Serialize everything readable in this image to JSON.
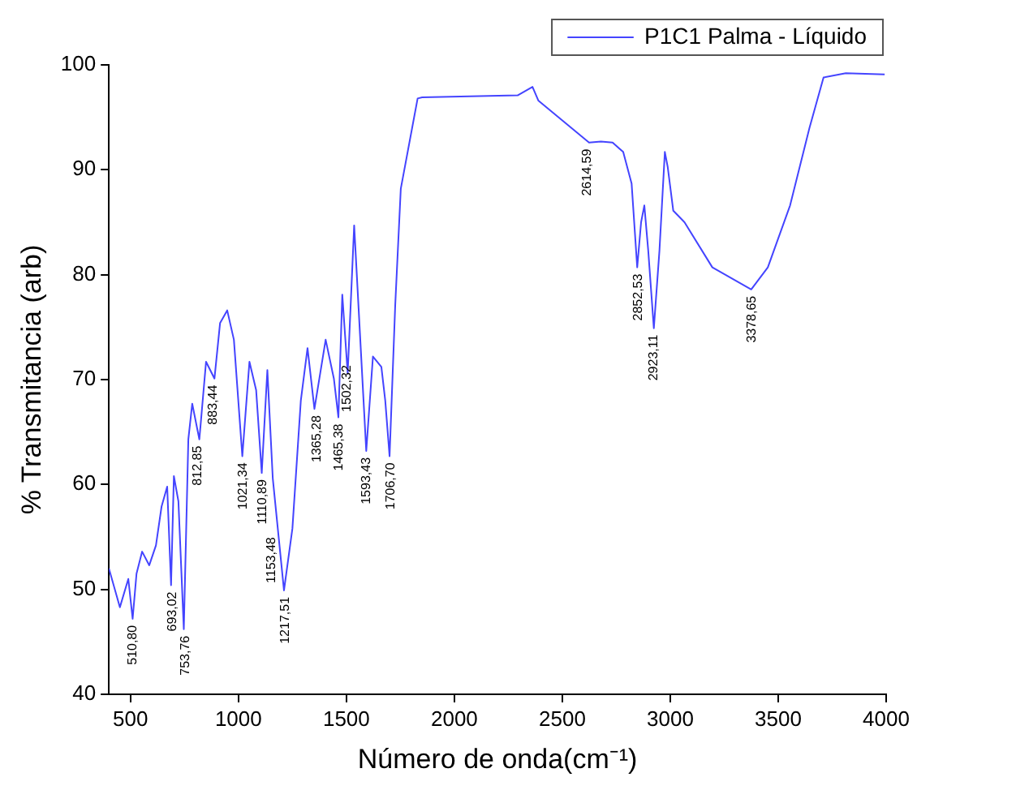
{
  "chart_data": {
    "type": "line",
    "xlabel": "Número de onda(cm⁻¹)",
    "ylabel": "% Transmitancia (arb)",
    "xlim": [
      400,
      4000
    ],
    "xticks": [
      500,
      1000,
      1500,
      2000,
      2500,
      3000,
      3500,
      4000
    ],
    "ylim": [
      40,
      100
    ],
    "yticks": [
      40,
      50,
      60,
      70,
      80,
      90,
      100
    ],
    "grid": false,
    "legend": "top right",
    "marker": "none",
    "line_style": "solid",
    "series": [
      {
        "name": "P1C1 Palma - Líquido",
        "color": "#4444ff",
        "x": [
          400,
          451,
          490,
          510,
          528,
          554,
          587,
          618,
          644,
          670,
          688,
          701,
          722,
          747,
          768,
          786,
          819,
          850,
          889,
          915,
          948,
          979,
          1018,
          1051,
          1082,
          1108,
          1134,
          1159,
          1211,
          1250,
          1289,
          1320,
          1352,
          1404,
          1442,
          1463,
          1481,
          1506,
          1536,
          1592,
          1623,
          1662,
          1680,
          1700,
          1726,
          1752,
          1830,
          1851,
          2293,
          2362,
          2389,
          2624,
          2679,
          2733,
          2782,
          2821,
          2847,
          2865,
          2880,
          2898,
          2924,
          2950,
          2975,
          2988,
          3014,
          3066,
          3195,
          3375,
          3452,
          3555,
          3645,
          3710,
          3813,
          3993
        ],
        "values": [
          52.0,
          48.3,
          51.0,
          47.2,
          51.5,
          53.6,
          52.3,
          54.2,
          57.9,
          59.8,
          50.4,
          60.8,
          58.4,
          46.2,
          64.3,
          67.7,
          64.3,
          71.7,
          70.1,
          75.4,
          76.6,
          73.8,
          62.7,
          71.7,
          69.0,
          61.1,
          70.9,
          60.6,
          49.9,
          55.8,
          68.0,
          73.0,
          67.2,
          73.8,
          70.1,
          66.4,
          78.1,
          70.6,
          84.7,
          63.2,
          72.2,
          71.2,
          68.0,
          62.7,
          77.0,
          88.2,
          96.8,
          96.9,
          97.1,
          97.9,
          96.6,
          92.6,
          92.7,
          92.6,
          91.7,
          88.7,
          80.7,
          85.0,
          86.6,
          82.3,
          74.9,
          82.3,
          91.7,
          90.3,
          86.1,
          85.0,
          80.7,
          78.6,
          80.7,
          86.6,
          94.0,
          98.8,
          99.2,
          99.1
        ]
      }
    ],
    "annotations": [
      {
        "text": "510,80",
        "x": 510.8,
        "y": 47.2
      },
      {
        "text": "693,02",
        "x": 693.02,
        "y": 50.4
      },
      {
        "text": "753,76",
        "x": 753.76,
        "y": 46.2
      },
      {
        "text": "812,85",
        "x": 812.85,
        "y": 64.3
      },
      {
        "text": "883,44",
        "x": 883.44,
        "y": 70.1
      },
      {
        "text": "1021,34",
        "x": 1021.34,
        "y": 62.7
      },
      {
        "text": "1110,89",
        "x": 1110.89,
        "y": 61.1
      },
      {
        "text": "1153,48",
        "x": 1153.48,
        "y": 55.6
      },
      {
        "text": "1217,51",
        "x": 1217.51,
        "y": 49.9
      },
      {
        "text": "1365,28",
        "x": 1365.28,
        "y": 67.2
      },
      {
        "text": "1465,38",
        "x": 1465.38,
        "y": 66.4
      },
      {
        "text": "1502,32",
        "x": 1502.32,
        "y": 72
      },
      {
        "text": "1593,43",
        "x": 1593.43,
        "y": 63.2
      },
      {
        "text": "1706,70",
        "x": 1706.7,
        "y": 62.7
      },
      {
        "text": "2614,59",
        "x": 2614.59,
        "y": 92.6
      },
      {
        "text": "2852,53",
        "x": 2852.53,
        "y": 80.7
      },
      {
        "text": "2923,11",
        "x": 2923.11,
        "y": 74.9
      },
      {
        "text": "3378,65",
        "x": 3378.65,
        "y": 78.6
      }
    ]
  }
}
